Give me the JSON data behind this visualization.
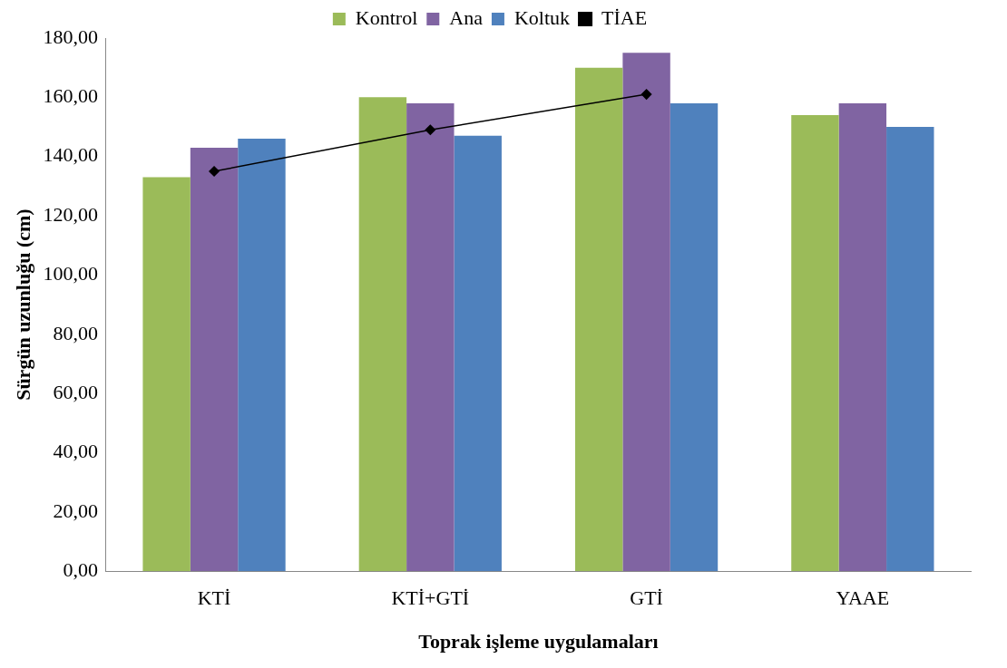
{
  "chart_data": {
    "type": "bar",
    "xlabel": "Toprak işleme uygulamaları",
    "ylabel": "Sürgün uzunluğu (cm)",
    "categories": [
      "KTİ",
      "KTİ+GTİ",
      "GTİ",
      "YAAE"
    ],
    "series": [
      {
        "name": "Kontrol",
        "color": "#9bbb59",
        "values": [
          133,
          160,
          170,
          154
        ]
      },
      {
        "name": "Ana",
        "color": "#8064a2",
        "values": [
          143,
          158,
          175,
          158
        ]
      },
      {
        "name": "Koltuk",
        "color": "#4f81bd",
        "values": [
          146,
          147,
          158,
          150
        ]
      },
      {
        "name": "TİAE",
        "type": "line",
        "color": "#000000",
        "marker": "diamond",
        "values": [
          135,
          149,
          161,
          null
        ]
      }
    ],
    "ylim": [
      0,
      180
    ],
    "yticks": [
      {
        "value": 0,
        "label": "0,00"
      },
      {
        "value": 20,
        "label": "20,00"
      },
      {
        "value": 40,
        "label": "40,00"
      },
      {
        "value": 60,
        "label": "60,00"
      },
      {
        "value": 80,
        "label": "80,00"
      },
      {
        "value": 100,
        "label": "100,00"
      },
      {
        "value": 120,
        "label": "120,00"
      },
      {
        "value": 140,
        "label": "140,00"
      },
      {
        "value": 160,
        "label": "160,00"
      },
      {
        "value": 180,
        "label": "180,00"
      }
    ],
    "legend": "top",
    "grid": false
  }
}
